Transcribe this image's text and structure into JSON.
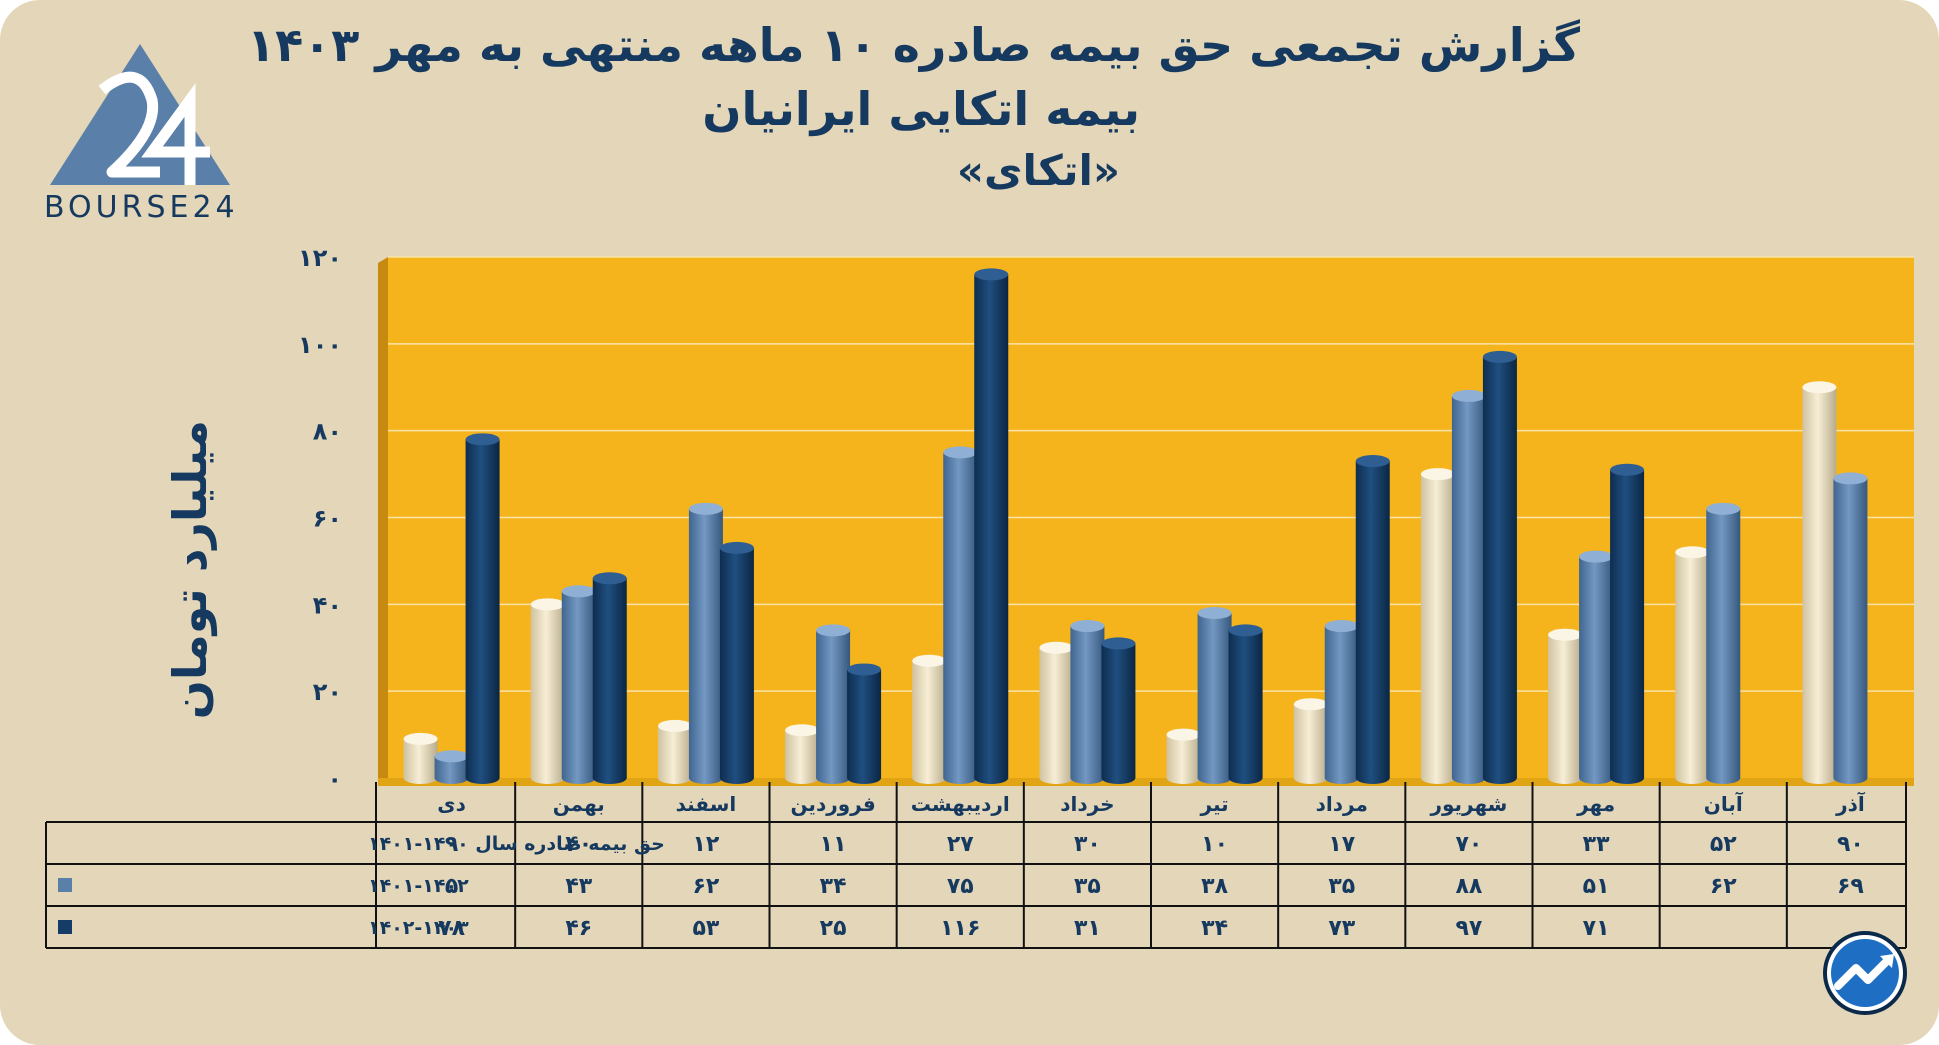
{
  "header": {
    "title_line1": "گزارش تجمعی حق بیمه صادره ۱۰ ماهه منتهی به مهر ۱۴۰۳",
    "title_line2": "بیمه اتکایی ایرانیان",
    "title_line3": "«اتکای»"
  },
  "logo": {
    "text": "BOURSE24",
    "icon": "bourse24-triangle-logo"
  },
  "badge_icon": "trend-arrow-icon",
  "colors": {
    "background": "#e3d6b9",
    "plot_background": "#f6b41c",
    "series_1": "#efe3c2",
    "series_2": "#5a7fa8",
    "series_3": "#143c66",
    "text": "#16395f"
  },
  "chart_data": {
    "type": "bar",
    "title": "گزارش تجمعی حق بیمه صادره ۱۰ ماهه منتهی به مهر ۱۴۰۳",
    "xlabel": "",
    "ylabel": "میلیارد تومان",
    "ylim": [
      0,
      120
    ],
    "yticks": [
      0,
      20,
      40,
      60,
      80,
      100,
      120
    ],
    "ytick_labels": [
      "۰",
      "۲۰",
      "۴۰",
      "۶۰",
      "۸۰",
      "۱۰۰",
      "۱۲۰"
    ],
    "grid": true,
    "categories": [
      "دی",
      "بهمن",
      "اسفند",
      "فروردین",
      "اردیبهشت",
      "خرداد",
      "تیر",
      "مرداد",
      "شهریور",
      "مهر",
      "آبان",
      "آذر"
    ],
    "series": [
      {
        "name": "حق بیمه صادره سال ۱۴۰۰-۱۴۰۱",
        "values": [
          9,
          40,
          12,
          11,
          27,
          30,
          10,
          17,
          70,
          33,
          52,
          90
        ],
        "labels": [
          "۹",
          "۴۰",
          "۱۲",
          "۱۱",
          "۲۷",
          "۳۰",
          "۱۰",
          "۱۷",
          "۷۰",
          "۳۳",
          "۵۲",
          "۹۰"
        ]
      },
      {
        "name": "۱۴۰۱-۱۴۰۲",
        "values": [
          5,
          43,
          62,
          34,
          75,
          35,
          38,
          35,
          88,
          51,
          62,
          69
        ],
        "labels": [
          "۵",
          "۴۳",
          "۶۲",
          "۳۴",
          "۷۵",
          "۳۵",
          "۳۸",
          "۳۵",
          "۸۸",
          "۵۱",
          "۶۲",
          "۶۹"
        ]
      },
      {
        "name": "۱۴۰۲-۱۴۰۳",
        "values": [
          78,
          46,
          53,
          25,
          116,
          31,
          34,
          73,
          97,
          71,
          null,
          null
        ],
        "labels": [
          "۷۸",
          "۴۶",
          "۵۳",
          "۲۵",
          "۱۱۶",
          "۳۱",
          "۳۴",
          "۷۳",
          "۹۷",
          "۷۱",
          "",
          ""
        ]
      }
    ]
  }
}
